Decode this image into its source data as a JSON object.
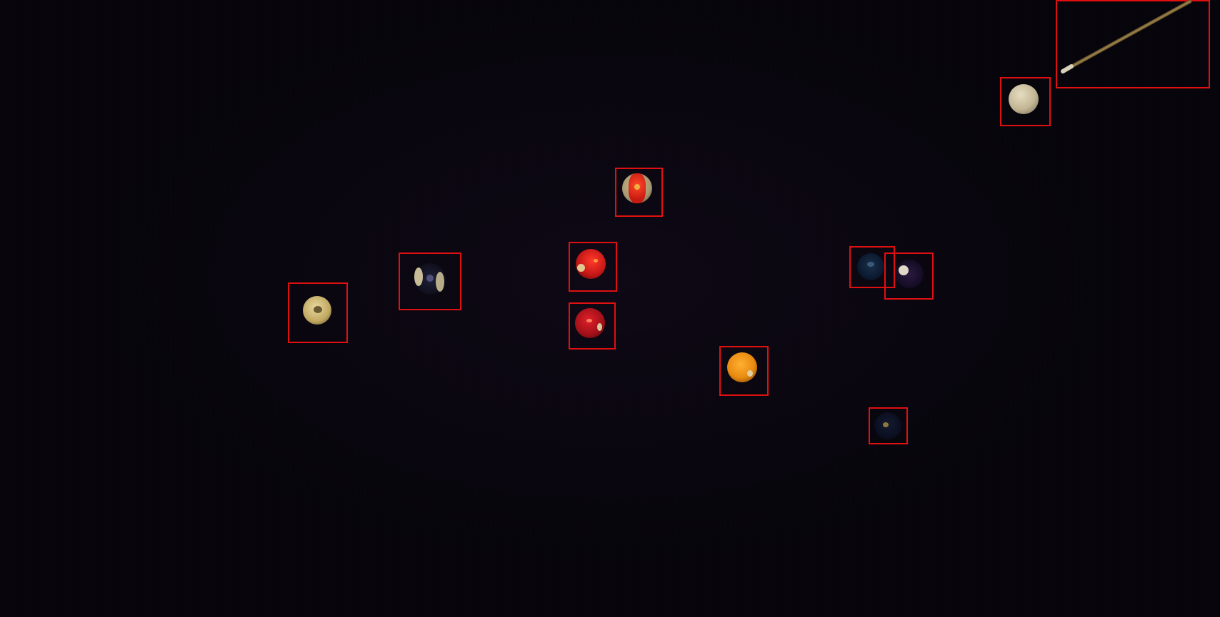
{
  "scene": {
    "description_label": "",
    "box_color": "#e01010",
    "background_color": "#06050b"
  },
  "objects": [
    {
      "id": "cue-stick",
      "kind": "cue",
      "color": "#8a6a3a"
    },
    {
      "id": "cue-ball",
      "kind": "ball",
      "color": "#c9bfa0"
    },
    {
      "id": "red-stripe-ball-top",
      "kind": "ball",
      "color": "#d02a18"
    },
    {
      "id": "dark-stripe-ball-left",
      "kind": "ball",
      "color": "#1a1a2a"
    },
    {
      "id": "yellow-stripe-ball-left",
      "kind": "ball",
      "color": "#c9b060"
    },
    {
      "id": "red-ball-center",
      "kind": "ball",
      "color": "#c81818"
    },
    {
      "id": "red-ball-lower",
      "kind": "ball",
      "color": "#a01018"
    },
    {
      "id": "orange-ball",
      "kind": "ball",
      "color": "#e88a10"
    },
    {
      "id": "blue-ball",
      "kind": "ball",
      "color": "#0c1a30"
    },
    {
      "id": "dark-ball-right",
      "kind": "ball",
      "color": "#150c25"
    },
    {
      "id": "dark-ball-bottom",
      "kind": "ball",
      "color": "#0a0e20"
    }
  ]
}
